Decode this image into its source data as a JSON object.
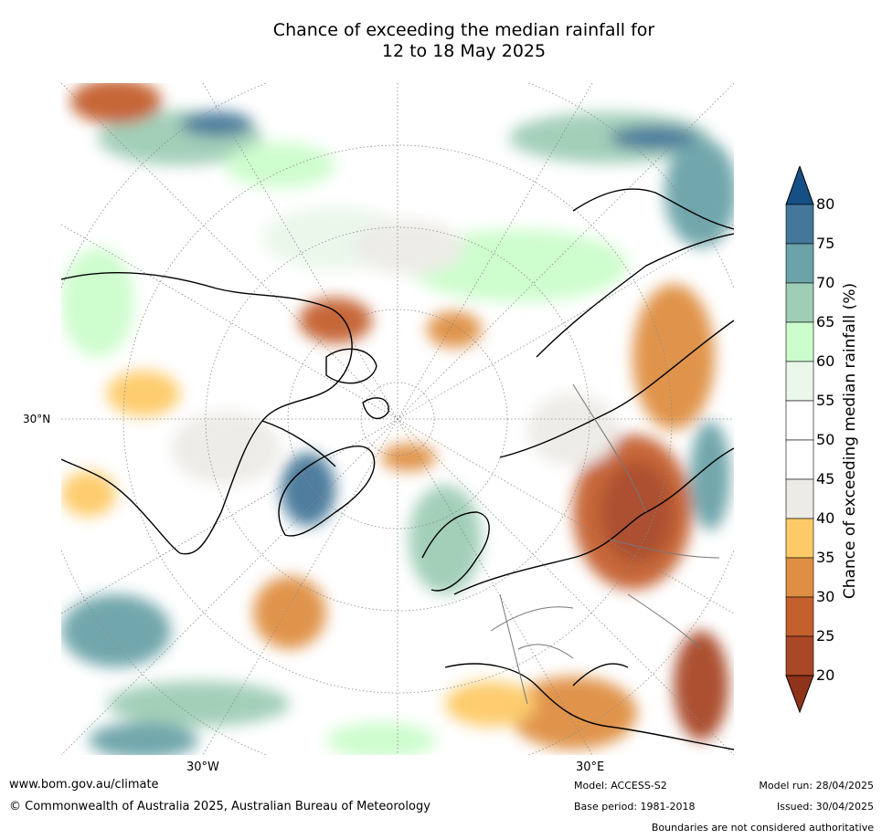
{
  "title_line1": "Chance of exceeding the median rainfall for",
  "title_line2": "12 to 18 May 2025",
  "map_labels": {
    "lat_30n": "30°N",
    "lon_30w": "30°W",
    "lon_30e": "30°E"
  },
  "colorbar": {
    "label": "Chance of exceeding median rainfall (%)",
    "ticks": [
      "80",
      "75",
      "70",
      "65",
      "60",
      "55",
      "50",
      "45",
      "40",
      "35",
      "30",
      "25",
      "20"
    ],
    "colors": {
      "above_80": "#164f86",
      "75_80": "#447799",
      "70_75": "#6aa3a8",
      "65_70": "#9fcdb6",
      "60_65": "#ccfdcc",
      "55_60": "#eaf7ea",
      "50_55": "#ffffff",
      "45_50": "#ffffff",
      "40_45": "#edebe6",
      "35_40": "#fdca67",
      "30_35": "#df8f43",
      "25_30": "#c45f2e",
      "20_25": "#a84726",
      "below_20": "#8f331b"
    }
  },
  "footer": {
    "website": "www.bom.gov.au/climate",
    "copyright": "© Commonwealth of Australia 2025, Australian Bureau of Meteorology",
    "model": "Model: ACCESS-S2",
    "base_period": "Base period: 1981-2018",
    "model_run": "Model run: 28/04/2025",
    "issued": "Issued: 30/04/2025",
    "disclaimer": "Boundaries are not considered authoritative"
  }
}
